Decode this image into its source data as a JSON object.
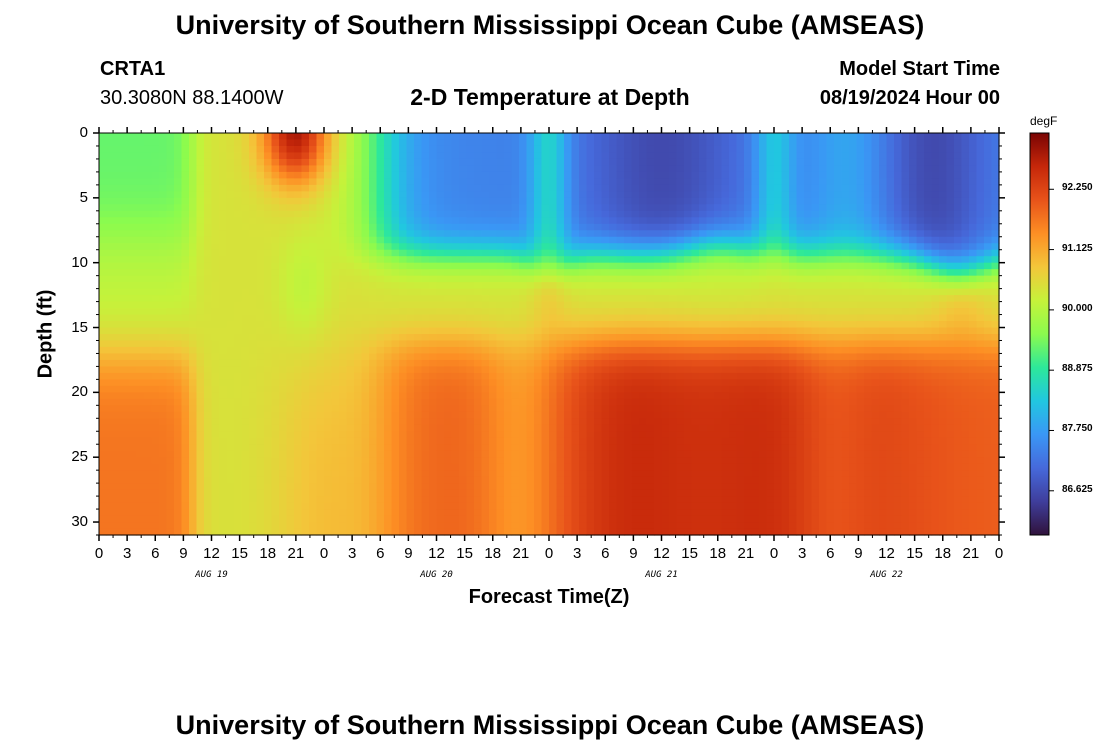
{
  "page": {
    "title_top": "University of Southern Mississippi Ocean Cube (AMSEAS)",
    "title_bottom": "University of Southern Mississippi Ocean Cube (AMSEAS)",
    "station": "CRTA1",
    "location": "30.3080N  88.1400W",
    "subtitle": "2-D Temperature at Depth",
    "model_start_label": "Model Start Time",
    "model_start_value": "08/19/2024 Hour 00"
  },
  "chart_data": {
    "type": "heatmap",
    "title": "2-D Temperature at Depth",
    "xlabel": "Forecast Time(Z)",
    "ylabel": "Depth (ft)",
    "x_hours_range": [
      0,
      96
    ],
    "x_ticks": [
      "0",
      "3",
      "6",
      "9",
      "12",
      "15",
      "18",
      "21",
      "0",
      "3",
      "6",
      "9",
      "12",
      "15",
      "18",
      "21",
      "0",
      "3",
      "6",
      "9",
      "12",
      "15",
      "18",
      "21",
      "0",
      "3",
      "6",
      "9",
      "12",
      "15",
      "18",
      "21",
      "0"
    ],
    "date_labels": [
      {
        "label": "AUG 19",
        "hour": 12
      },
      {
        "label": "AUG 20",
        "hour": 36
      },
      {
        "label": "AUG 21",
        "hour": 60
      },
      {
        "label": "AUG 22",
        "hour": 84
      }
    ],
    "ylim": [
      0,
      31
    ],
    "y_ticks": [
      "0",
      "5",
      "10",
      "15",
      "20",
      "25",
      "30"
    ],
    "colorbar": {
      "unit": "degF",
      "range": [
        85.8,
        93.3
      ],
      "tick_labels": [
        "92.250",
        "91.125",
        "90.000",
        "88.875",
        "87.750",
        "86.625"
      ],
      "colors": [
        "#30123b",
        "#3f3e9c",
        "#4669db",
        "#3a97f5",
        "#21c7e0",
        "#2de89a",
        "#8bfb4e",
        "#c6f23a",
        "#f3c63a",
        "#fd8f24",
        "#e8531a",
        "#c6270a",
        "#7a0403"
      ]
    },
    "grid": false,
    "legend": "colorbar-right"
  }
}
